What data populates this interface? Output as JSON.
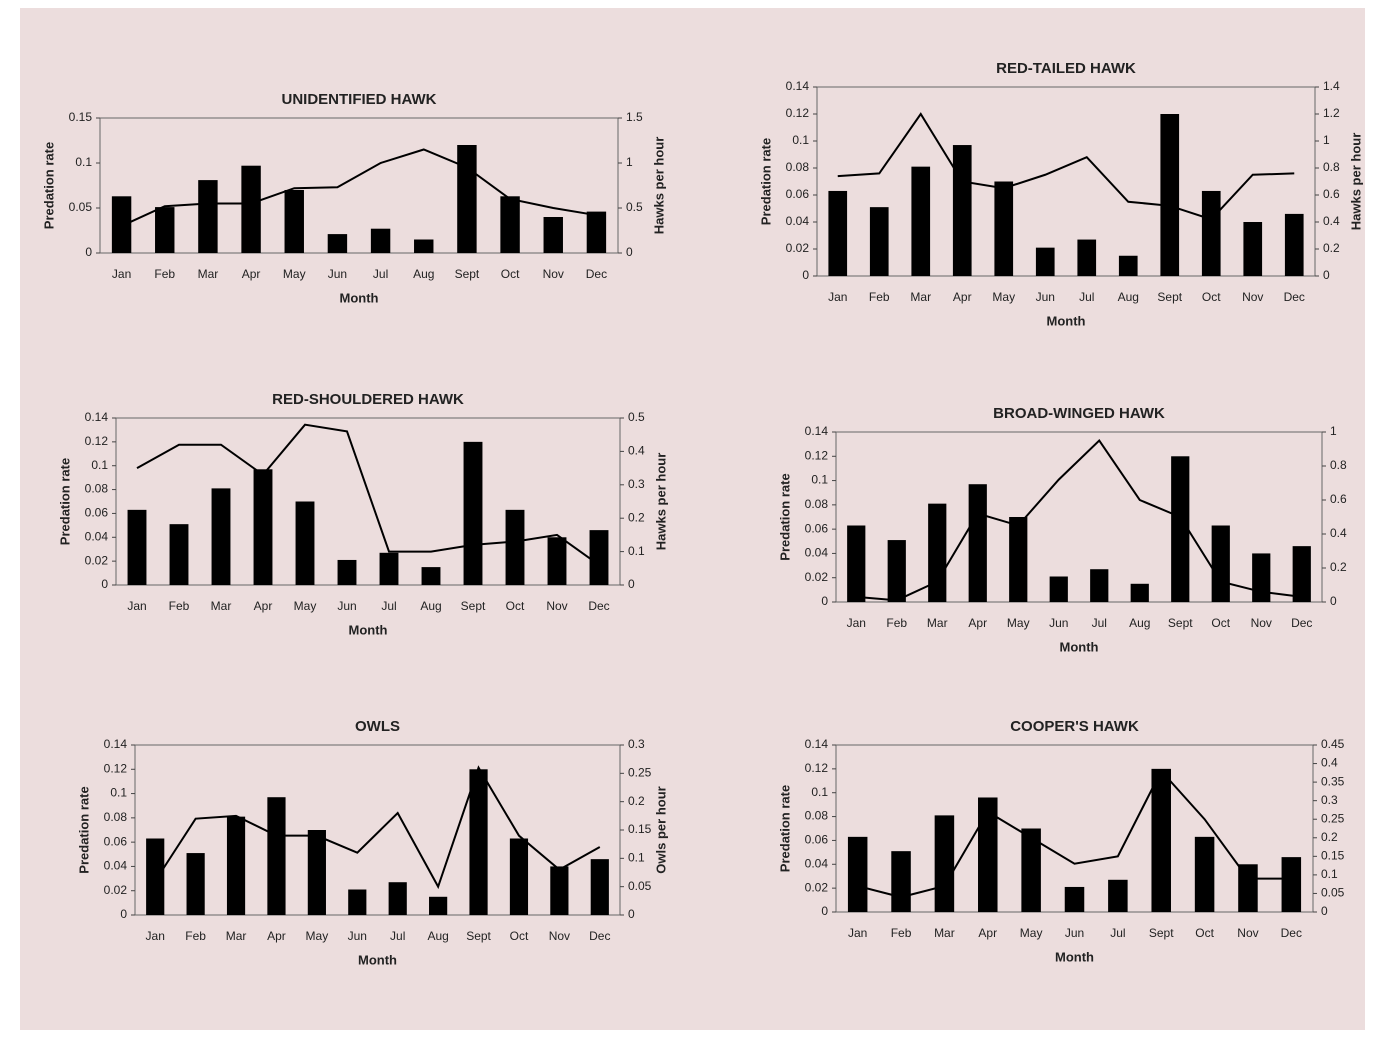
{
  "chart_data": [
    {
      "type": "combo",
      "title": "UNIDENTIFIED HAWK",
      "x_label": "Month",
      "y_label": "Predation rate",
      "y2_label": "Hawks per hour",
      "categories": [
        "Jan",
        "Feb",
        "Mar",
        "Apr",
        "May",
        "Jun",
        "Jul",
        "Aug",
        "Sept",
        "Oct",
        "Nov",
        "Dec"
      ],
      "ylim": [
        0,
        0.15
      ],
      "yticks": [
        0,
        0.05,
        0.1,
        0.15
      ],
      "y2lim": [
        0,
        1.5
      ],
      "y2ticks": [
        0,
        0.5,
        1,
        1.5
      ],
      "series": [
        {
          "type": "bar",
          "color": "#000000",
          "values": [
            0.063,
            0.051,
            0.081,
            0.097,
            0.07,
            0.021,
            0.027,
            0.015,
            0.12,
            0.063,
            0.04,
            0.046
          ]
        },
        {
          "type": "line",
          "axis": "y2",
          "color": "#000000",
          "values": [
            0.3,
            0.52,
            0.55,
            0.55,
            0.72,
            0.73,
            1.0,
            1.15,
            0.95,
            0.6,
            0.5,
            0.42
          ]
        }
      ]
    },
    {
      "type": "combo",
      "title": "RED-TAILED HAWK",
      "x_label": "Month",
      "y_label": "Predation rate",
      "y2_label": "Hawks per hour",
      "categories": [
        "Jan",
        "Feb",
        "Mar",
        "Apr",
        "May",
        "Jun",
        "Jul",
        "Aug",
        "Sept",
        "Oct",
        "Nov",
        "Dec"
      ],
      "ylim": [
        0,
        0.14
      ],
      "yticks": [
        0,
        0.02,
        0.04,
        0.06,
        0.08,
        0.1,
        0.12,
        0.14
      ],
      "y2lim": [
        0,
        1.4
      ],
      "y2ticks": [
        0,
        0.2,
        0.4,
        0.6,
        0.8,
        1,
        1.2,
        1.4
      ],
      "series": [
        {
          "type": "bar",
          "color": "#000000",
          "values": [
            0.063,
            0.051,
            0.081,
            0.097,
            0.07,
            0.021,
            0.027,
            0.015,
            0.12,
            0.063,
            0.04,
            0.046
          ]
        },
        {
          "type": "line",
          "axis": "y2",
          "color": "#000000",
          "values": [
            0.74,
            0.76,
            1.2,
            0.7,
            0.65,
            0.75,
            0.88,
            0.55,
            0.52,
            0.42,
            0.75,
            0.76
          ]
        }
      ]
    },
    {
      "type": "combo",
      "title": "RED-SHOULDERED HAWK",
      "x_label": "Month",
      "y_label": "Predation rate",
      "y2_label": "Hawks per hour",
      "categories": [
        "Jan",
        "Feb",
        "Mar",
        "Apr",
        "May",
        "Jun",
        "Jul",
        "Aug",
        "Sept",
        "Oct",
        "Nov",
        "Dec"
      ],
      "ylim": [
        0,
        0.14
      ],
      "yticks": [
        0,
        0.02,
        0.04,
        0.06,
        0.08,
        0.1,
        0.12,
        0.14
      ],
      "y2lim": [
        0,
        0.5
      ],
      "y2ticks": [
        0,
        0.1,
        0.2,
        0.3,
        0.4,
        0.5
      ],
      "series": [
        {
          "type": "bar",
          "color": "#000000",
          "values": [
            0.063,
            0.051,
            0.081,
            0.097,
            0.07,
            0.021,
            0.027,
            0.015,
            0.12,
            0.063,
            0.04,
            0.046
          ]
        },
        {
          "type": "line",
          "axis": "y2",
          "color": "#000000",
          "values": [
            0.35,
            0.42,
            0.42,
            0.33,
            0.48,
            0.46,
            0.1,
            0.1,
            0.12,
            0.13,
            0.15,
            0.06
          ]
        }
      ]
    },
    {
      "type": "combo",
      "title": "BROAD-WINGED HAWK",
      "x_label": "Month",
      "y_label": "Predation rate",
      "categories": [
        "Jan",
        "Feb",
        "Mar",
        "Apr",
        "May",
        "Jun",
        "Jul",
        "Aug",
        "Sept",
        "Oct",
        "Nov",
        "Dec"
      ],
      "ylim": [
        0,
        0.14
      ],
      "yticks": [
        0,
        0.02,
        0.04,
        0.06,
        0.08,
        0.1,
        0.12,
        0.14
      ],
      "y2lim": [
        0,
        1
      ],
      "y2ticks": [
        0,
        0.2,
        0.4,
        0.6,
        0.8,
        1
      ],
      "series": [
        {
          "type": "bar",
          "color": "#000000",
          "values": [
            0.063,
            0.051,
            0.081,
            0.097,
            0.07,
            0.021,
            0.027,
            0.015,
            0.12,
            0.063,
            0.04,
            0.046
          ]
        },
        {
          "type": "line",
          "axis": "y2",
          "color": "#000000",
          "values": [
            0.03,
            0.01,
            0.12,
            0.52,
            0.45,
            0.72,
            0.95,
            0.6,
            0.5,
            0.12,
            0.06,
            0.03
          ]
        }
      ]
    },
    {
      "type": "combo",
      "title": "OWLS",
      "x_label": "Month",
      "y_label": "Predation rate",
      "y2_label": "Owls per hour",
      "categories": [
        "Jan",
        "Feb",
        "Mar",
        "Apr",
        "May",
        "Jun",
        "Jul",
        "Aug",
        "Sept",
        "Oct",
        "Nov",
        "Dec"
      ],
      "ylim": [
        0,
        0.14
      ],
      "yticks": [
        0,
        0.02,
        0.04,
        0.06,
        0.08,
        0.1,
        0.12,
        0.14
      ],
      "y2lim": [
        0,
        0.3
      ],
      "y2ticks": [
        0,
        0.05,
        0.1,
        0.15,
        0.2,
        0.25,
        0.3
      ],
      "series": [
        {
          "type": "bar",
          "color": "#000000",
          "values": [
            0.063,
            0.051,
            0.081,
            0.097,
            0.07,
            0.021,
            0.027,
            0.015,
            0.12,
            0.063,
            0.04,
            0.046
          ]
        },
        {
          "type": "line",
          "axis": "y2",
          "color": "#000000",
          "values": [
            0.06,
            0.17,
            0.175,
            0.14,
            0.14,
            0.11,
            0.18,
            0.05,
            0.26,
            0.14,
            0.08,
            0.12
          ]
        }
      ]
    },
    {
      "type": "combo",
      "title": "COOPER'S HAWK",
      "x_label": "Month",
      "y_label": "Predation rate",
      "categories": [
        "Jan",
        "Feb",
        "Mar",
        "Apr",
        "May",
        "Jun",
        "Jul",
        "Sept",
        "Oct",
        "Nov",
        "Dec"
      ],
      "ylim": [
        0,
        0.14
      ],
      "yticks": [
        0,
        0.02,
        0.04,
        0.06,
        0.08,
        0.1,
        0.12,
        0.14
      ],
      "y2lim": [
        0,
        0.45
      ],
      "y2ticks": [
        0,
        0.05,
        0.1,
        0.15,
        0.2,
        0.25,
        0.3,
        0.35,
        0.4,
        0.45
      ],
      "series": [
        {
          "type": "bar",
          "color": "#000000",
          "values": [
            0.063,
            0.051,
            0.081,
            0.096,
            0.07,
            0.021,
            0.027,
            0.12,
            0.063,
            0.04,
            0.046
          ]
        },
        {
          "type": "line",
          "axis": "y2",
          "color": "#000000",
          "values": [
            0.07,
            0.04,
            0.07,
            0.27,
            0.2,
            0.13,
            0.15,
            0.38,
            0.25,
            0.09,
            0.09
          ]
        }
      ]
    }
  ]
}
